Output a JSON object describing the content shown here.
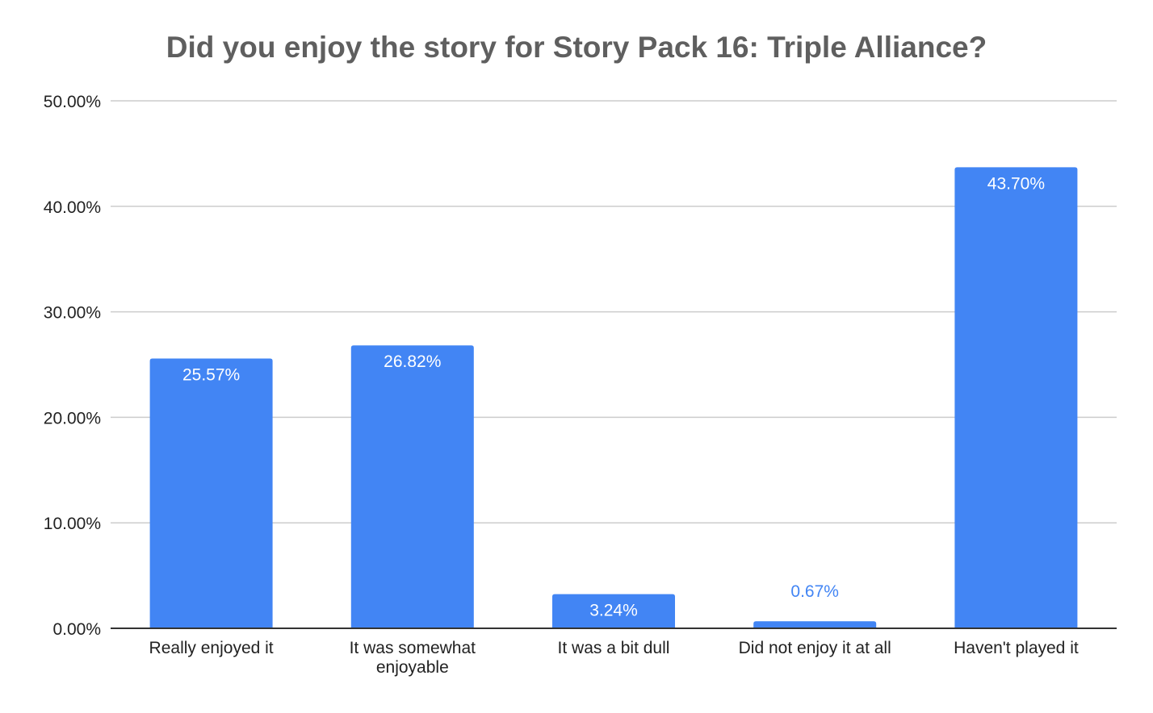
{
  "chart_data": {
    "type": "bar",
    "title": "Did you enjoy the story for Story Pack 16: Triple Alliance?",
    "xlabel": "",
    "ylabel": "",
    "categories": [
      [
        "Really enjoyed it"
      ],
      [
        "It was somewhat",
        "enjoyable"
      ],
      [
        "It was a bit dull"
      ],
      [
        "Did not enjoy it at all"
      ],
      [
        "Haven't played it"
      ]
    ],
    "values": [
      25.57,
      26.82,
      3.24,
      0.67,
      43.7
    ],
    "data_labels": [
      "25.57%",
      "26.82%",
      "3.24%",
      "0.67%",
      "43.70%"
    ],
    "ylim": [
      0,
      50
    ],
    "yticks": [
      0,
      10,
      20,
      30,
      40,
      50
    ],
    "ytick_labels": [
      "0.00%",
      "10.00%",
      "20.00%",
      "30.00%",
      "40.00%",
      "50.00%"
    ],
    "grid": true,
    "legend": "none",
    "colors": {
      "bar": "#4285f4",
      "label_inside": "#ffffff",
      "label_outside": "#4285f4",
      "grid": "#cccccc",
      "axis": "#333333",
      "title": "#5f5f5f"
    }
  }
}
